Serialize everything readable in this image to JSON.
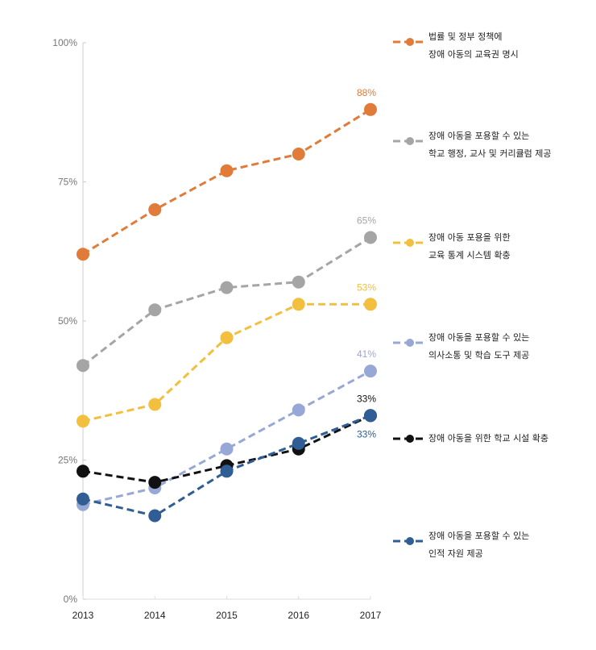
{
  "chart_data": {
    "type": "line",
    "title": "",
    "xlabel": "",
    "ylabel": "",
    "x": [
      "2013",
      "2014",
      "2015",
      "2016",
      "2017"
    ],
    "ylim": [
      0,
      100
    ],
    "yticks": [
      "0%",
      "25%",
      "50%",
      "75%",
      "100%"
    ],
    "ytick_values": [
      0,
      25,
      50,
      75,
      100
    ],
    "grid": false,
    "legend_position": "right",
    "series": [
      {
        "name": "법률 및 정부 정책에 장애 아동의 교육권 명시",
        "legend_lines": [
          "법률 및 정부 정책에",
          "장애 아동의 교육권 명시"
        ],
        "color": "#E07B39",
        "values": [
          62,
          70,
          77,
          80,
          88
        ],
        "end_label": "88%"
      },
      {
        "name": "장애 아동을 포용할 수 있는 학교 행정, 교사 및 커리큘럼 제공",
        "legend_lines": [
          "장애 아동을 포용할 수 있는",
          "학교 행정, 교사 및 커리큘럼 제공"
        ],
        "color": "#A5A5A5",
        "values": [
          42,
          52,
          56,
          57,
          65
        ],
        "end_label": "65%"
      },
      {
        "name": "장애 아동 포용을 위한 교육 통계 시스템 확충",
        "legend_lines": [
          "장애 아동 포용을 위한",
          "교육 통계 시스템 확충"
        ],
        "color": "#F2C03E",
        "values": [
          32,
          35,
          47,
          53,
          53
        ],
        "end_label": "53%"
      },
      {
        "name": "장애 아동을 포용할 수 있는 의사소통 및 학습 도구 제공",
        "legend_lines": [
          "장애 아동을 포용할 수 있는",
          "의사소통 및 학습 도구 제공"
        ],
        "color": "#98A8D6",
        "values": [
          17,
          20,
          27,
          34,
          41
        ],
        "end_label": "41%"
      },
      {
        "name": "장애 아동을 위한 학교 시설 확충",
        "legend_lines": [
          "장애 아동을 위한 학교 시설 확충"
        ],
        "color": "#111111",
        "values": [
          23,
          21,
          24,
          27,
          33
        ],
        "end_label": "33%"
      },
      {
        "name": "장애 아동을 포용할 수 있는 인적 자원 제공",
        "legend_lines": [
          "장애 아동을 포용할 수 있는",
          "인적 자원 제공"
        ],
        "color": "#2F5D94",
        "values": [
          18,
          15,
          23,
          28,
          33
        ],
        "end_label": "33%"
      }
    ]
  }
}
